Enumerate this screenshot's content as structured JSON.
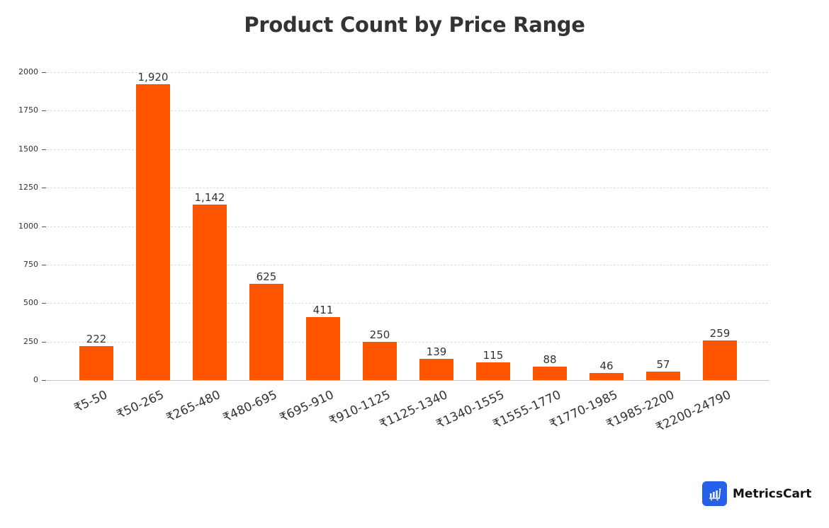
{
  "chart_data": {
    "type": "bar",
    "title": "Product Count by Price Range",
    "xlabel": "",
    "ylabel": "",
    "categories": [
      "₹5-50",
      "₹50-265",
      "₹265-480",
      "₹480-695",
      "₹695-910",
      "₹910-1125",
      "₹1125-1340",
      "₹1340-1555",
      "₹1555-1770",
      "₹1770-1985",
      "₹1985-2200",
      "₹2200-24790"
    ],
    "values": [
      222,
      1920,
      1142,
      625,
      411,
      250,
      139,
      115,
      88,
      46,
      57,
      259
    ],
    "value_labels": [
      "222",
      "1,920",
      "1,142",
      "625",
      "411",
      "250",
      "139",
      "115",
      "88",
      "46",
      "57",
      "259"
    ],
    "ylim": [
      0,
      2000
    ],
    "yticks": [
      0,
      250,
      500,
      750,
      1000,
      1250,
      1500,
      1750,
      2000
    ],
    "grid": true,
    "legend": null,
    "bar_color": "#ff5500"
  },
  "branding": {
    "logo_text": "MetricsCart",
    "logo_icon": "bar-chart-cart-icon",
    "logo_color": "#2760e8"
  }
}
